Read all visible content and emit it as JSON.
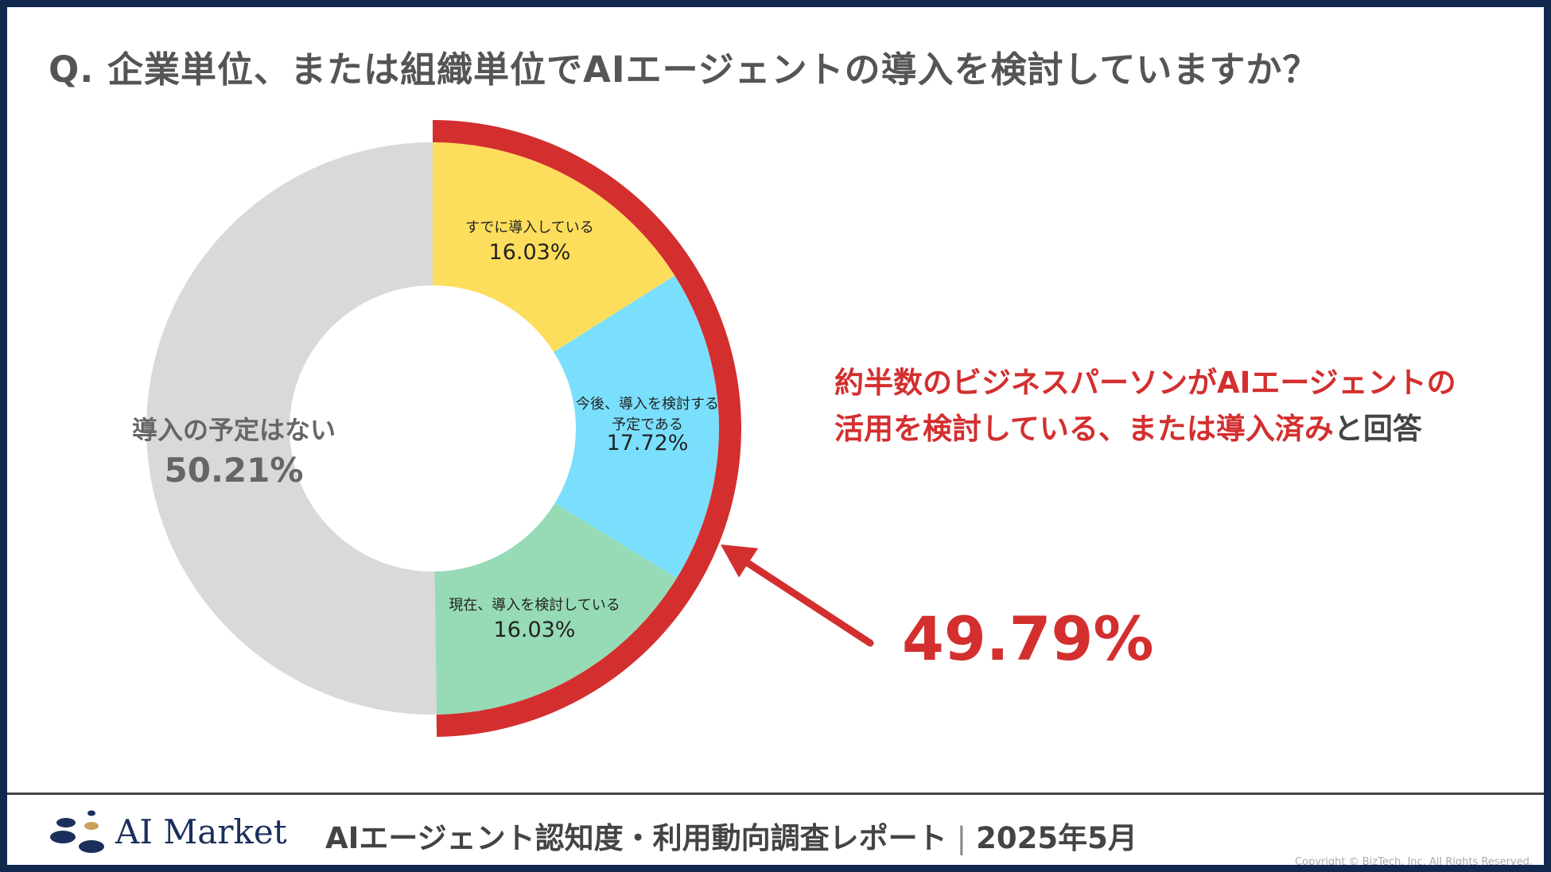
{
  "question": "Q. 企業単位、または組織単位でAIエージェントの導入を検討していますか？",
  "chart_data": {
    "type": "pie",
    "title": "Q. 企業単位、または組織単位でAIエージェントの導入を検討していますか？",
    "unit": "%",
    "categories": [
      "すでに導入している",
      "今後、導入を検討する予定である",
      "現在、導入を検討している",
      "導入の予定はない"
    ],
    "values": [
      16.03,
      17.72,
      16.03,
      50.21
    ],
    "value_labels": [
      "16.03%",
      "17.72%",
      "16.03%",
      "50.21%"
    ],
    "label_lines": [
      [
        "すでに導入している"
      ],
      [
        "今後、導入を検討する",
        "予定である"
      ],
      [
        "現在、導入を検討している"
      ],
      [
        "導入の予定はない"
      ]
    ],
    "colors": [
      "#FDDE5C",
      "#7ADFFD",
      "#97DAB6",
      "#D9D9D9"
    ],
    "highlight": {
      "label": "49.79%",
      "value": 49.79,
      "color": "#D32F2F"
    }
  },
  "callout": {
    "red_text": "約半数のビジネスパーソンがAIエージェントの活用を検討している、または導入済み",
    "plain_text": "と回答"
  },
  "big_value": "49.79%",
  "footer": {
    "logo_text": "AI Market",
    "report_title": "AIエージェント認知度・利用動向調査レポート",
    "separator": "|",
    "report_date": "2025年5月",
    "copyright": "Copyright © BizTech, Inc. All Rights Reserved."
  }
}
